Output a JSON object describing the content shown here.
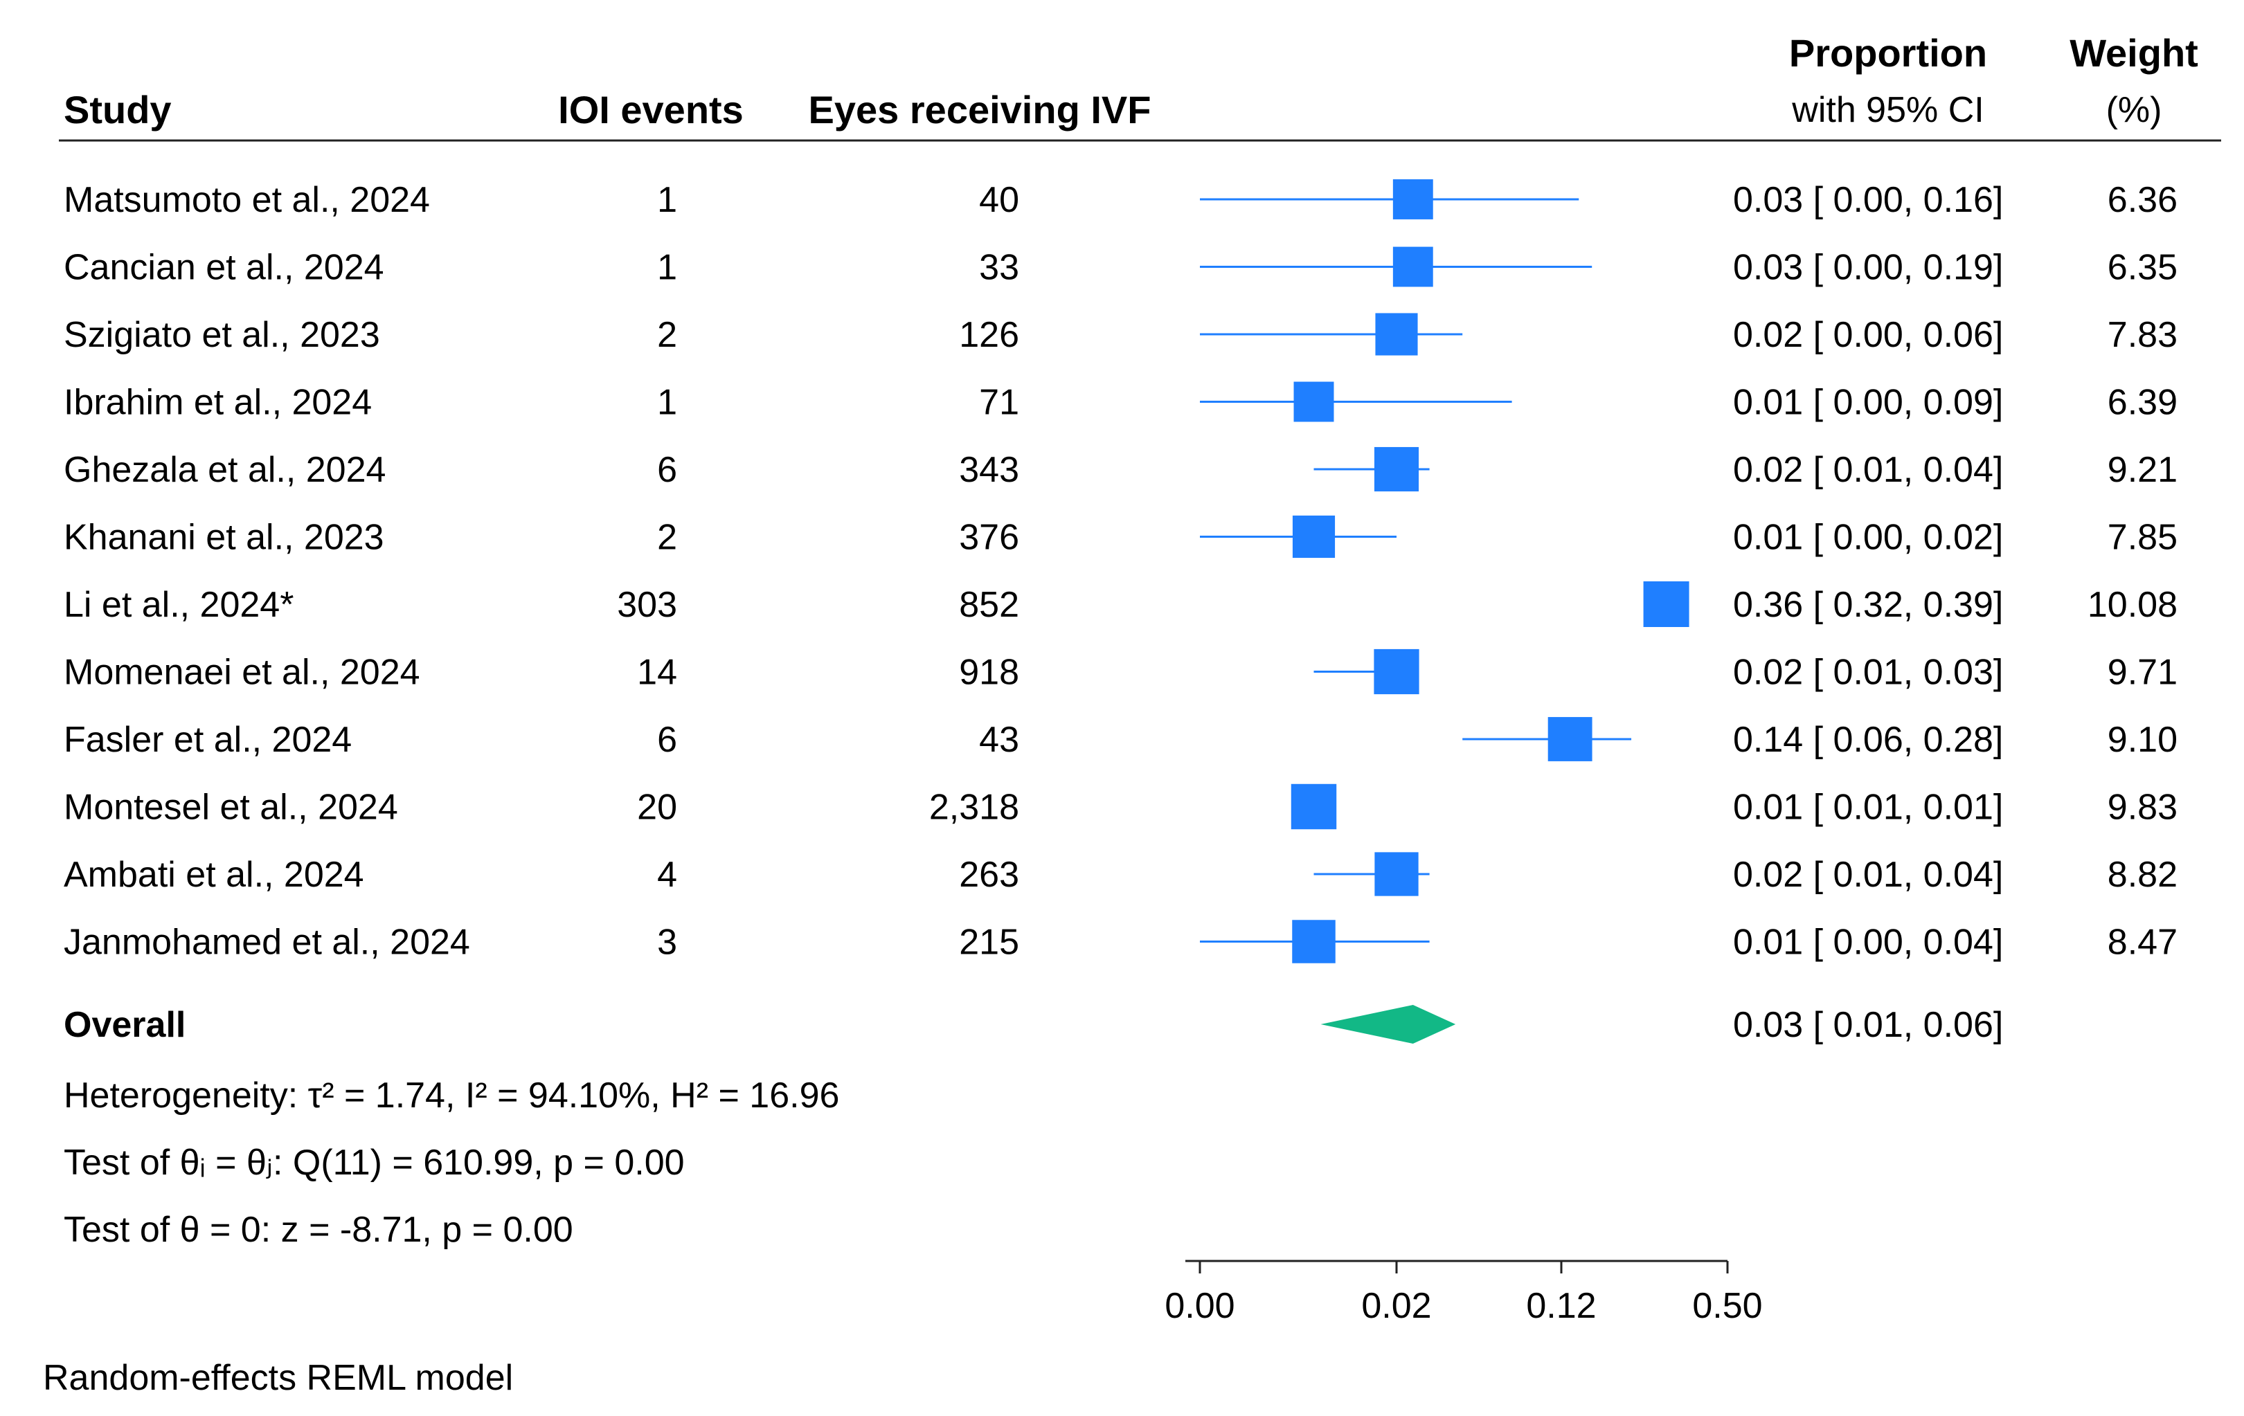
{
  "chart_data": {
    "type": "forest",
    "title": "",
    "x_scale": "logit",
    "xlim": [
      0.0,
      0.5
    ],
    "columns": {
      "study": "Study",
      "events": "IOI events",
      "eyes": "Eyes receiving IVF",
      "proportion_line1": "Proportion",
      "proportion_line2": "with 95% CI",
      "weight_line1": "Weight",
      "weight_line2": "(%)"
    },
    "studies": [
      {
        "name": "Matsumoto et al., 2024",
        "events": "1",
        "eyes": "40",
        "proportion": 0.03,
        "ci_low": 0.0,
        "ci_high": 0.16,
        "ci_text": "0.03 [ 0.00,  0.16]",
        "weight": "6.36"
      },
      {
        "name": "Cancian et al., 2024",
        "events": "1",
        "eyes": "33",
        "proportion": 0.03,
        "ci_low": 0.0,
        "ci_high": 0.19,
        "ci_text": "0.03 [ 0.00,  0.19]",
        "weight": "6.35"
      },
      {
        "name": "Szigiato et al., 2023",
        "events": "2",
        "eyes": "126",
        "proportion": 0.02,
        "ci_low": 0.0,
        "ci_high": 0.06,
        "ci_text": "0.02 [ 0.00,  0.06]",
        "weight": "7.83"
      },
      {
        "name": "Ibrahim et al., 2024",
        "events": "1",
        "eyes": "71",
        "proportion": 0.01,
        "ci_low": 0.0,
        "ci_high": 0.09,
        "ci_text": "0.01 [ 0.00,  0.09]",
        "weight": "6.39"
      },
      {
        "name": "Ghezala et al., 2024",
        "events": "6",
        "eyes": "343",
        "proportion": 0.02,
        "ci_low": 0.01,
        "ci_high": 0.04,
        "ci_text": "0.02 [ 0.01,  0.04]",
        "weight": "9.21"
      },
      {
        "name": "Khanani et al., 2023",
        "events": "2",
        "eyes": "376",
        "proportion": 0.01,
        "ci_low": 0.0,
        "ci_high": 0.02,
        "ci_text": "0.01 [ 0.00,  0.02]",
        "weight": "7.85"
      },
      {
        "name": "Li et al., 2024*",
        "events": "303",
        "eyes": "852",
        "proportion": 0.36,
        "ci_low": 0.32,
        "ci_high": 0.39,
        "ci_text": "0.36 [ 0.32,  0.39]",
        "weight": "10.08"
      },
      {
        "name": "Momenaei et al., 2024",
        "events": "14",
        "eyes": "918",
        "proportion": 0.02,
        "ci_low": 0.01,
        "ci_high": 0.03,
        "ci_text": "0.02 [ 0.01,  0.03]",
        "weight": "9.71"
      },
      {
        "name": "Fasler et al., 2024",
        "events": "6",
        "eyes": "43",
        "proportion": 0.14,
        "ci_low": 0.06,
        "ci_high": 0.28,
        "ci_text": "0.14 [ 0.06,  0.28]",
        "weight": "9.10"
      },
      {
        "name": "Montesel et al., 2024",
        "events": "20",
        "eyes": "2,318",
        "proportion": 0.01,
        "ci_low": 0.01,
        "ci_high": 0.01,
        "ci_text": "0.01 [ 0.01,  0.01]",
        "weight": "9.83"
      },
      {
        "name": "Ambati et al., 2024",
        "events": "4",
        "eyes": "263",
        "proportion": 0.02,
        "ci_low": 0.01,
        "ci_high": 0.04,
        "ci_text": "0.02 [ 0.01,  0.04]",
        "weight": "8.82"
      },
      {
        "name": "Janmohamed et al., 2024",
        "events": "3",
        "eyes": "215",
        "proportion": 0.01,
        "ci_low": 0.0,
        "ci_high": 0.04,
        "ci_text": "0.01 [ 0.00,  0.04]",
        "weight": "8.47"
      }
    ],
    "overall": {
      "label": "Overall",
      "proportion": 0.03,
      "ci_low": 0.01,
      "ci_high": 0.06,
      "ci_text": "0.03 [ 0.01,  0.06]"
    },
    "notes": {
      "heterogeneity": "Heterogeneity: τ² = 1.74, I² = 94.10%, H² = 16.96",
      "test_equal": "Test of θᵢ = θⱼ: Q(11) = 610.99, p = 0.00",
      "test_zero": "Test of θ = 0: z = -8.71, p = 0.00"
    },
    "x_ticks": [
      {
        "label": "0.00",
        "value": 0.0
      },
      {
        "label": "0.02",
        "value": 0.02
      },
      {
        "label": "0.12",
        "value": 0.12
      },
      {
        "label": "0.50",
        "value": 0.5
      }
    ],
    "footnote": "Random-effects REML model",
    "colors": {
      "marker": "#1f7fff",
      "diamond": "#12b886",
      "text": "#111111",
      "rule": "#222222"
    }
  }
}
